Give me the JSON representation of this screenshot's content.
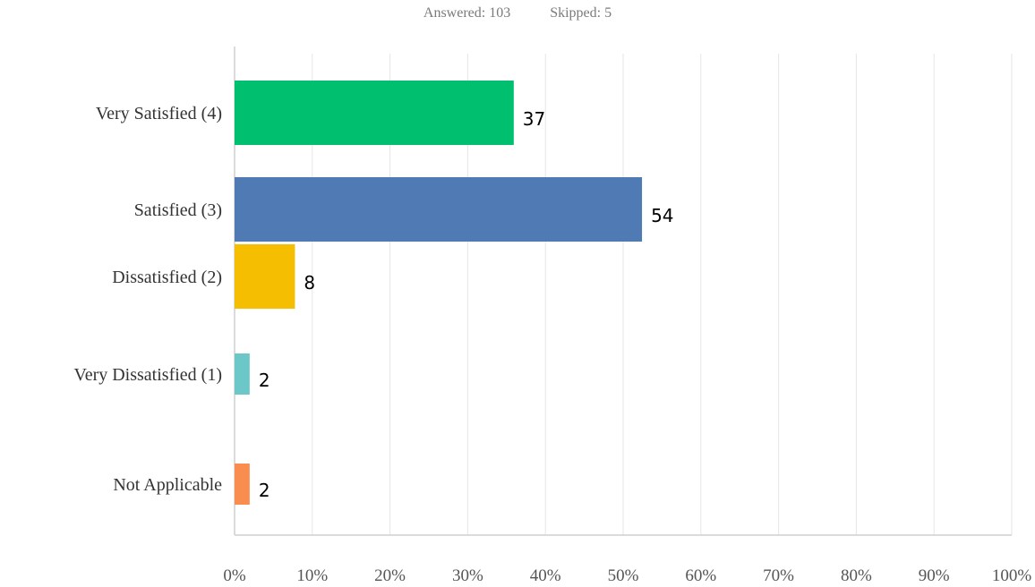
{
  "summary": {
    "answered": "Answered: 103",
    "skipped": "Skipped: 5"
  },
  "chart_data": {
    "type": "bar",
    "orientation": "horizontal",
    "categories": [
      "Very Satisfied (4)",
      "Satisfied (3)",
      "Dissatisfied (2)",
      "Very Dissatisfied (1)",
      "Not Applicable"
    ],
    "values": [
      37,
      54,
      8,
      2,
      2
    ],
    "value_labels": [
      "37",
      "54",
      "8",
      "2",
      "2"
    ],
    "colors": [
      "#00bf6f",
      "#4f7ab3",
      "#f5be00",
      "#6cc8c8",
      "#f98c4f"
    ],
    "x_tick_labels": [
      "0%",
      "10%",
      "20%",
      "30%",
      "40%",
      "50%",
      "60%",
      "70%",
      "80%",
      "90%",
      "100%"
    ],
    "xlim": [
      0,
      100
    ],
    "grid": true,
    "title": "",
    "xlabel": "",
    "ylabel": ""
  }
}
